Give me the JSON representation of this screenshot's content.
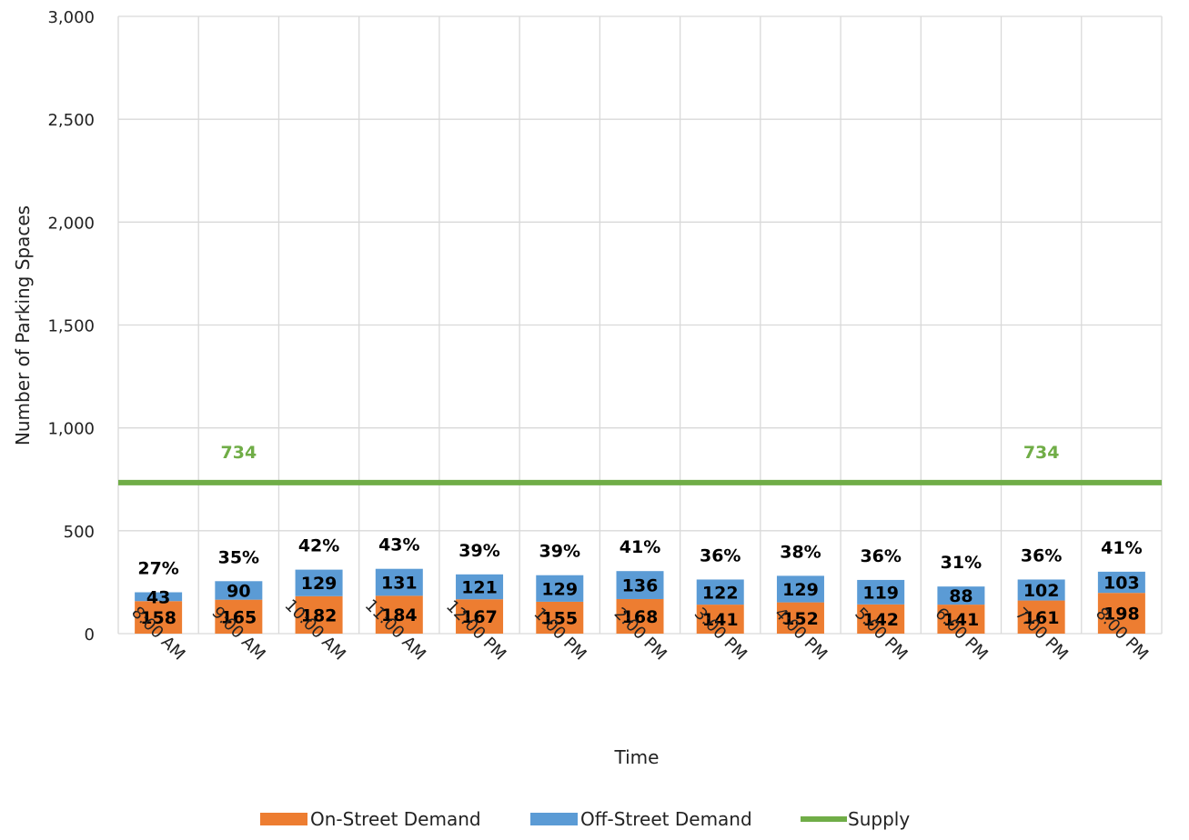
{
  "chart_data": {
    "type": "bar",
    "stacked": true,
    "xlabel": "Time",
    "ylabel": "Number of Parking Spaces",
    "ylim": [
      0,
      3000
    ],
    "yticks": [
      0,
      500,
      1000,
      1500,
      2000,
      2500,
      3000
    ],
    "ytick_labels": [
      "0",
      "500",
      "1,000",
      "1,500",
      "2,000",
      "2,500",
      "3,000"
    ],
    "grid": true,
    "legend_position": "bottom",
    "categories": [
      "8:00 AM",
      "9:00 AM",
      "10:00 AM",
      "11:00 AM",
      "12:00 PM",
      "1:00 PM",
      "2:00 PM",
      "3:00 PM",
      "4:00 PM",
      "5:00 PM",
      "6:00 PM",
      "7:00 PM",
      "8:00 PM"
    ],
    "series": [
      {
        "name": "On-Street Demand",
        "color": "#ED7D31",
        "values": [
          158,
          165,
          182,
          184,
          167,
          155,
          168,
          141,
          152,
          142,
          141,
          161,
          198
        ]
      },
      {
        "name": "Off-Street Demand",
        "color": "#5B9BD5",
        "values": [
          43,
          90,
          129,
          131,
          121,
          129,
          136,
          122,
          129,
          119,
          88,
          102,
          103
        ]
      }
    ],
    "occupancy_labels": [
      "27%",
      "35%",
      "42%",
      "43%",
      "39%",
      "39%",
      "41%",
      "36%",
      "38%",
      "36%",
      "31%",
      "36%",
      "41%"
    ],
    "supply": {
      "name": "Supply",
      "color": "#70AD47",
      "value": 734,
      "label": "734"
    }
  }
}
